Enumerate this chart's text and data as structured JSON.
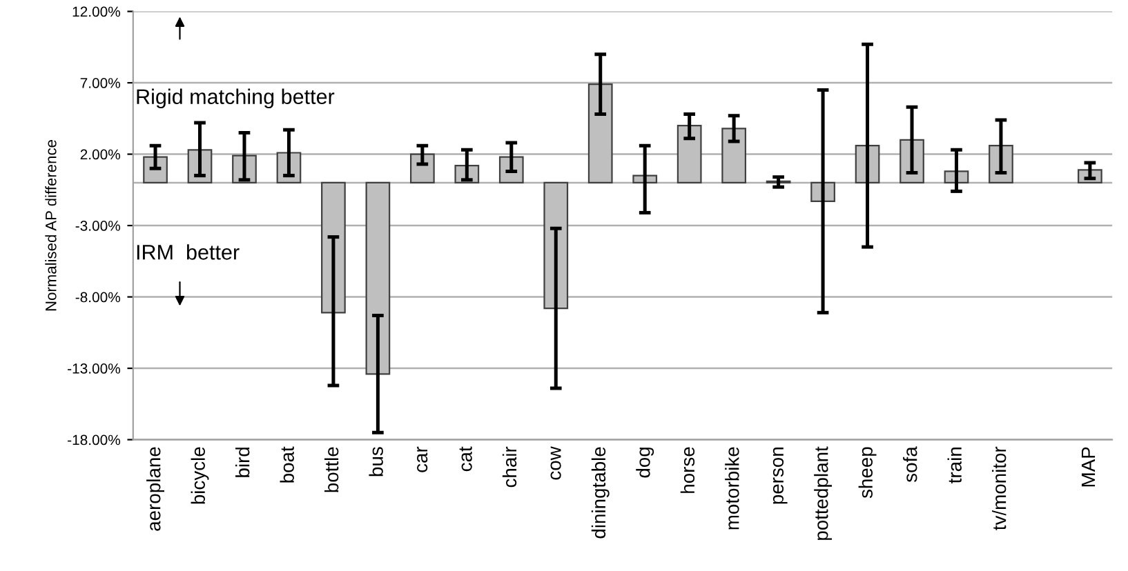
{
  "chart_data": {
    "type": "bar",
    "ylabel": "Normalised AP difference",
    "categories": [
      "aeroplane",
      "bicycle",
      "bird",
      "boat",
      "bottle",
      "bus",
      "car",
      "cat",
      "chair",
      "cow",
      "diningtable",
      "dog",
      "horse",
      "motorbike",
      "person",
      "pottedplant",
      "sheep",
      "sofa",
      "train",
      "tv/monitor",
      null,
      "MAP"
    ],
    "values": [
      1.8,
      2.3,
      1.9,
      2.1,
      -9.1,
      -13.4,
      2.0,
      1.2,
      1.8,
      -8.8,
      6.9,
      0.5,
      4.0,
      3.8,
      0.1,
      -1.3,
      2.6,
      3.0,
      0.8,
      2.6,
      null,
      0.9
    ],
    "errors": [
      [
        1.0,
        2.6
      ],
      [
        0.5,
        4.2
      ],
      [
        0.2,
        3.5
      ],
      [
        0.5,
        3.7
      ],
      [
        -14.2,
        -3.8
      ],
      [
        -17.5,
        -9.3
      ],
      [
        1.3,
        2.6
      ],
      [
        0.2,
        2.3
      ],
      [
        0.8,
        2.8
      ],
      [
        -14.4,
        -3.2
      ],
      [
        4.8,
        9.0
      ],
      [
        -2.1,
        2.6
      ],
      [
        3.1,
        4.8
      ],
      [
        2.9,
        4.7
      ],
      [
        -0.3,
        0.4
      ],
      [
        -9.1,
        6.5
      ],
      [
        -4.5,
        9.7
      ],
      [
        0.7,
        5.3
      ],
      [
        -0.6,
        2.3
      ],
      [
        0.7,
        4.4
      ],
      null,
      [
        0.3,
        1.4
      ]
    ],
    "color": "#bfbfbf",
    "ylim": [
      -18,
      12
    ],
    "yticks": [
      {
        "value": -18,
        "label": "-18.00%"
      },
      {
        "value": -13,
        "label": "-13.00%"
      },
      {
        "value": -8,
        "label": "-8.00%"
      },
      {
        "value": -3,
        "label": "-3.00%"
      },
      {
        "value": 2,
        "label": "2.00%"
      },
      {
        "value": 7,
        "label": "7.00%"
      },
      {
        "value": 12,
        "label": "12.00%"
      }
    ],
    "grid": "y",
    "annotations": [
      "Rigid matching better",
      "IRM  better"
    ]
  }
}
